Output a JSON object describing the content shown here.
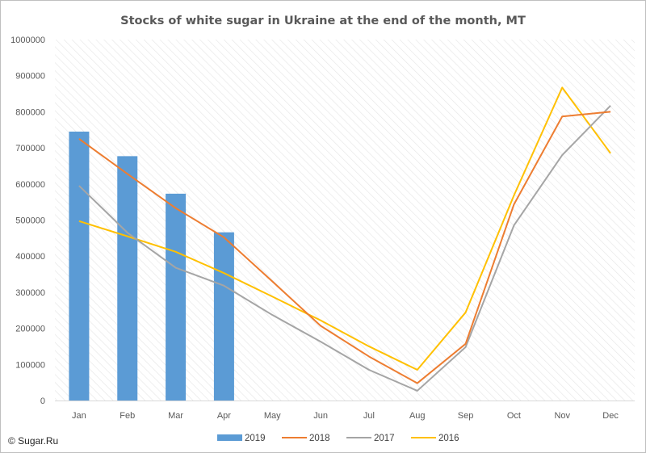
{
  "watermark": "© Sugar.Ru",
  "chart_data": {
    "type": "bar",
    "title": "Stocks of white sugar in Ukraine at the end of the month, MT",
    "xlabel": "",
    "ylabel": "",
    "categories": [
      "Jan",
      "Feb",
      "Mar",
      "Apr",
      "May",
      "Jun",
      "Jul",
      "Aug",
      "Sep",
      "Oct",
      "Nov",
      "Dec"
    ],
    "ylim": [
      0,
      1000000
    ],
    "yticks": [
      0,
      100000,
      200000,
      300000,
      400000,
      500000,
      600000,
      700000,
      800000,
      900000,
      1000000
    ],
    "grid": "hatched plot area",
    "legend_position": "bottom",
    "series": [
      {
        "name": "2019",
        "kind": "bar",
        "color": "#5b9bd5",
        "values": [
          745000,
          677000,
          573000,
          466000,
          null,
          null,
          null,
          null,
          null,
          null,
          null,
          null
        ]
      },
      {
        "name": "2018",
        "kind": "line",
        "color": "#ed7d31",
        "values": [
          725000,
          628000,
          533000,
          452000,
          330000,
          207000,
          122000,
          48000,
          157000,
          543000,
          787000,
          800000
        ]
      },
      {
        "name": "2017",
        "kind": "line",
        "color": "#a5a5a5",
        "values": [
          595000,
          465000,
          368000,
          318000,
          237000,
          163000,
          85000,
          27000,
          148000,
          485000,
          680000,
          817000
        ]
      },
      {
        "name": "2016",
        "kind": "line",
        "color": "#ffc000",
        "values": [
          497000,
          455000,
          412000,
          353000,
          288000,
          222000,
          150000,
          85000,
          244000,
          568000,
          867000,
          685000
        ]
      }
    ]
  }
}
